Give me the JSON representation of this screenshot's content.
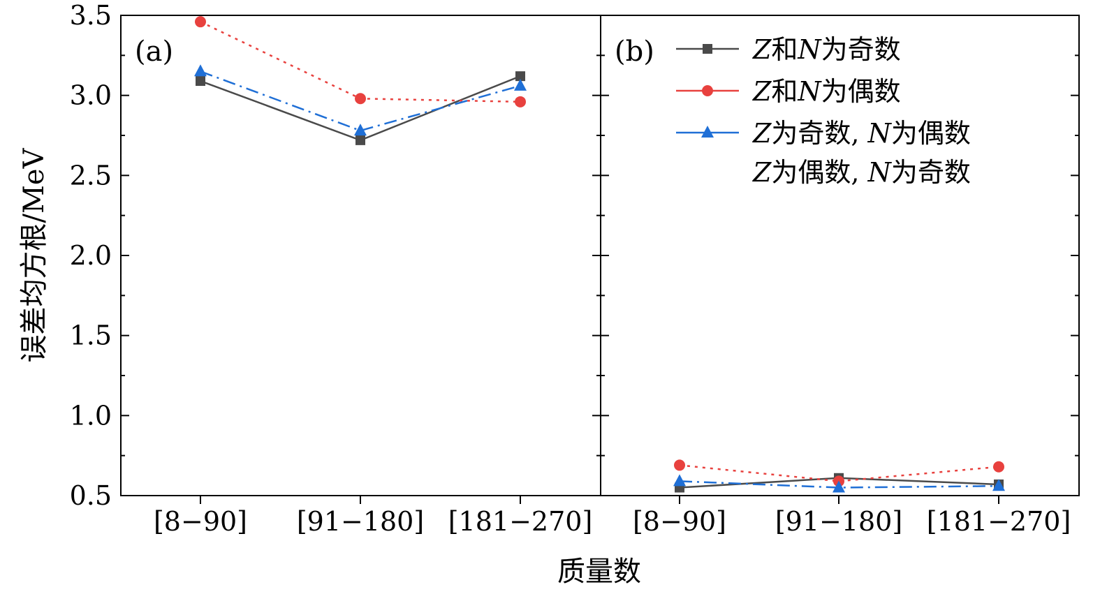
{
  "chart_data": {
    "type": "line",
    "ylabel": "误差均方根/MeV",
    "xlabel": "质量数",
    "ylim": [
      0.5,
      3.5
    ],
    "yticks": [
      0.5,
      1.0,
      1.5,
      2.0,
      2.5,
      3.0,
      3.5
    ],
    "ytick_labels": [
      "0.5",
      "1.0",
      "1.5",
      "2.0",
      "2.5",
      "3.0",
      "3.5"
    ],
    "categories": [
      "[8−90]",
      "[91−180]",
      "[181−270]"
    ],
    "colors": {
      "odd_odd": "#4a4a4a",
      "even_even": "#e8413e",
      "odd_even": "#1f6fd6"
    },
    "legend": [
      {
        "key": "odd_odd",
        "lines": [
          "Z和N为奇数"
        ]
      },
      {
        "key": "even_even",
        "lines": [
          "Z和N为偶数"
        ]
      },
      {
        "key": "odd_even",
        "lines": [
          "Z为奇数, N为偶数",
          "Z为偶数, N为奇数"
        ]
      }
    ],
    "panels": [
      {
        "label": "(a)",
        "series": [
          {
            "key": "odd_odd",
            "name": "Z和N为奇数",
            "marker": "square",
            "dash": "solid",
            "values": [
              3.09,
              2.72,
              3.12
            ]
          },
          {
            "key": "even_even",
            "name": "Z和N为偶数",
            "marker": "circle",
            "dash": "dot",
            "values": [
              3.46,
              2.98,
              2.96
            ]
          },
          {
            "key": "odd_even",
            "name": "Z为奇数, N为偶数 / Z为偶数, N为奇数",
            "marker": "triangle",
            "dash": "dashdot",
            "values": [
              3.15,
              2.78,
              3.06
            ]
          }
        ]
      },
      {
        "label": "(b)",
        "series": [
          {
            "key": "odd_odd",
            "name": "Z和N为奇数",
            "marker": "square",
            "dash": "solid",
            "values": [
              0.55,
              0.61,
              0.57
            ]
          },
          {
            "key": "even_even",
            "name": "Z和N为偶数",
            "marker": "circle",
            "dash": "dot",
            "values": [
              0.69,
              0.59,
              0.68
            ]
          },
          {
            "key": "odd_even",
            "name": "Z为奇数, N为偶数 / Z为偶数, N为奇数",
            "marker": "triangle",
            "dash": "dashdot",
            "values": [
              0.59,
              0.55,
              0.56
            ]
          }
        ]
      }
    ]
  }
}
